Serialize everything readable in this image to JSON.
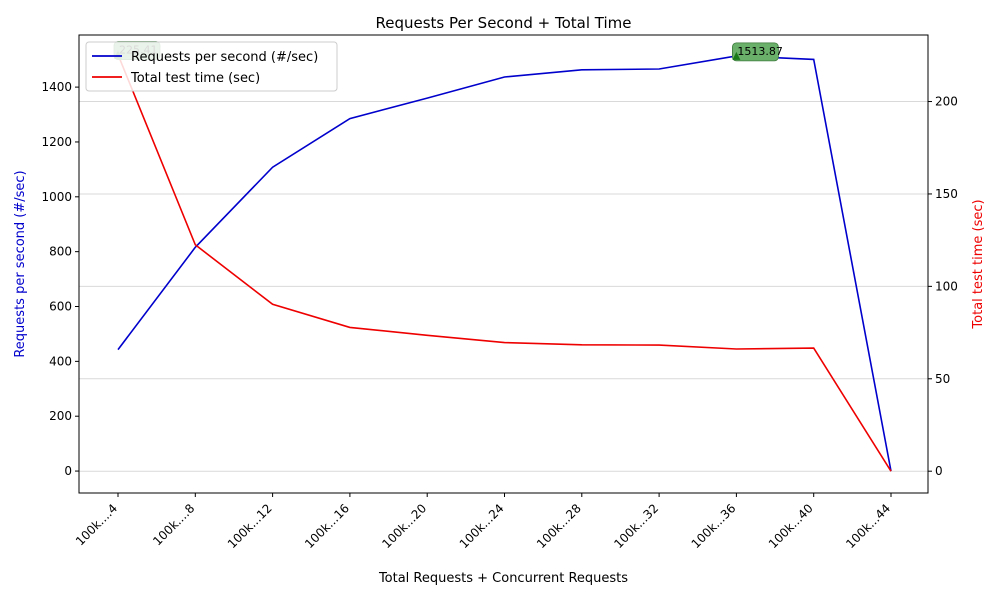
{
  "chart_data": {
    "type": "line",
    "title": "Requests Per Second + Total Time",
    "xlabel": "Total Requests + Concurrent Requests",
    "categories": [
      "100k....4",
      "100k....8",
      "100k...12",
      "100k...16",
      "100k...20",
      "100k...24",
      "100k...28",
      "100k...32",
      "100k...36",
      "100k...40",
      "100k...44"
    ],
    "series": [
      {
        "name": "Requests per second (#/sec)",
        "axis": "left",
        "color": "#0000cc",
        "values": [
          443,
          816,
          1108,
          1285,
          1360,
          1437,
          1463,
          1466,
          1513.87,
          1501,
          0
        ]
      },
      {
        "name": "Total test time (sec)",
        "axis": "right",
        "color": "#ee0000",
        "values": [
          225.41,
          122.5,
          90.3,
          77.8,
          73.5,
          69.6,
          68.4,
          68.2,
          66.1,
          66.6,
          0
        ]
      }
    ],
    "left_axis": {
      "label": "Requests per second (#/sec)",
      "color": "#0000cc",
      "ylim": [
        -80,
        1590
      ],
      "ticks": [
        0,
        200,
        400,
        600,
        800,
        1000,
        1200,
        1400
      ]
    },
    "right_axis": {
      "label": "Total test time (sec)",
      "color": "#ee0000",
      "ylim": [
        -11.8,
        236
      ],
      "ticks": [
        0,
        50,
        100,
        150,
        200
      ]
    },
    "grid": "horizontal, right axis",
    "legend": "top-left",
    "annotations": [
      {
        "text": "225.41",
        "series": "Total test time (sec)",
        "index": 0,
        "marker_color": "#1a7a1a",
        "box_color": "#6ab06a"
      },
      {
        "text": "1513.87",
        "series": "Requests per second (#/sec)",
        "index": 8,
        "marker_color": "#1a7a1a",
        "box_color": "#6ab06a"
      }
    ]
  }
}
